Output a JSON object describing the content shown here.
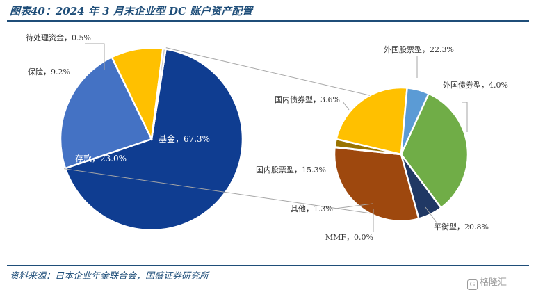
{
  "title": "图表40：2024 年 3 月末企业型 DC 账户资产配置",
  "source": "资料来源：日本企业年金联合会，国盛证券研究所",
  "watermark": "格隆汇",
  "chart_data": [
    {
      "type": "pie",
      "slices": [
        {
          "name": "基金",
          "value": 67.3,
          "label": "基金，67.3%",
          "color": "#0f3d91"
        },
        {
          "name": "存款",
          "value": 23.0,
          "label": "存款，23.0%",
          "color": "#4472c4"
        },
        {
          "name": "保险",
          "value": 9.2,
          "label": "保险，9.2%",
          "color": "#ffc000"
        },
        {
          "name": "待处理资金",
          "value": 0.5,
          "label": "待处理资金，0.5%",
          "color": "#c8c8c8"
        }
      ]
    },
    {
      "type": "pie",
      "breakdown_of": "基金",
      "slices": [
        {
          "name": "外国股票型",
          "value": 22.3,
          "label": "外国股票型，22.3%",
          "color": "#70ad47"
        },
        {
          "name": "外国债券型",
          "value": 4.0,
          "label": "外国债券型，4.0%",
          "color": "#203864"
        },
        {
          "name": "平衡型",
          "value": 20.8,
          "label": "平衡型，20.8%",
          "color": "#9e480e"
        },
        {
          "name": "MMF",
          "value": 0.0,
          "label": "MMF，0.0%",
          "color": "#7f7f7f"
        },
        {
          "name": "其他",
          "value": 1.3,
          "label": "其他，1.3%",
          "color": "#997300"
        },
        {
          "name": "国内股票型",
          "value": 15.3,
          "label": "国内股票型，15.3%",
          "color": "#ffc000"
        },
        {
          "name": "国内债券型",
          "value": 3.6,
          "label": "国内债券型，3.6%",
          "color": "#5b9bd5"
        }
      ]
    }
  ]
}
